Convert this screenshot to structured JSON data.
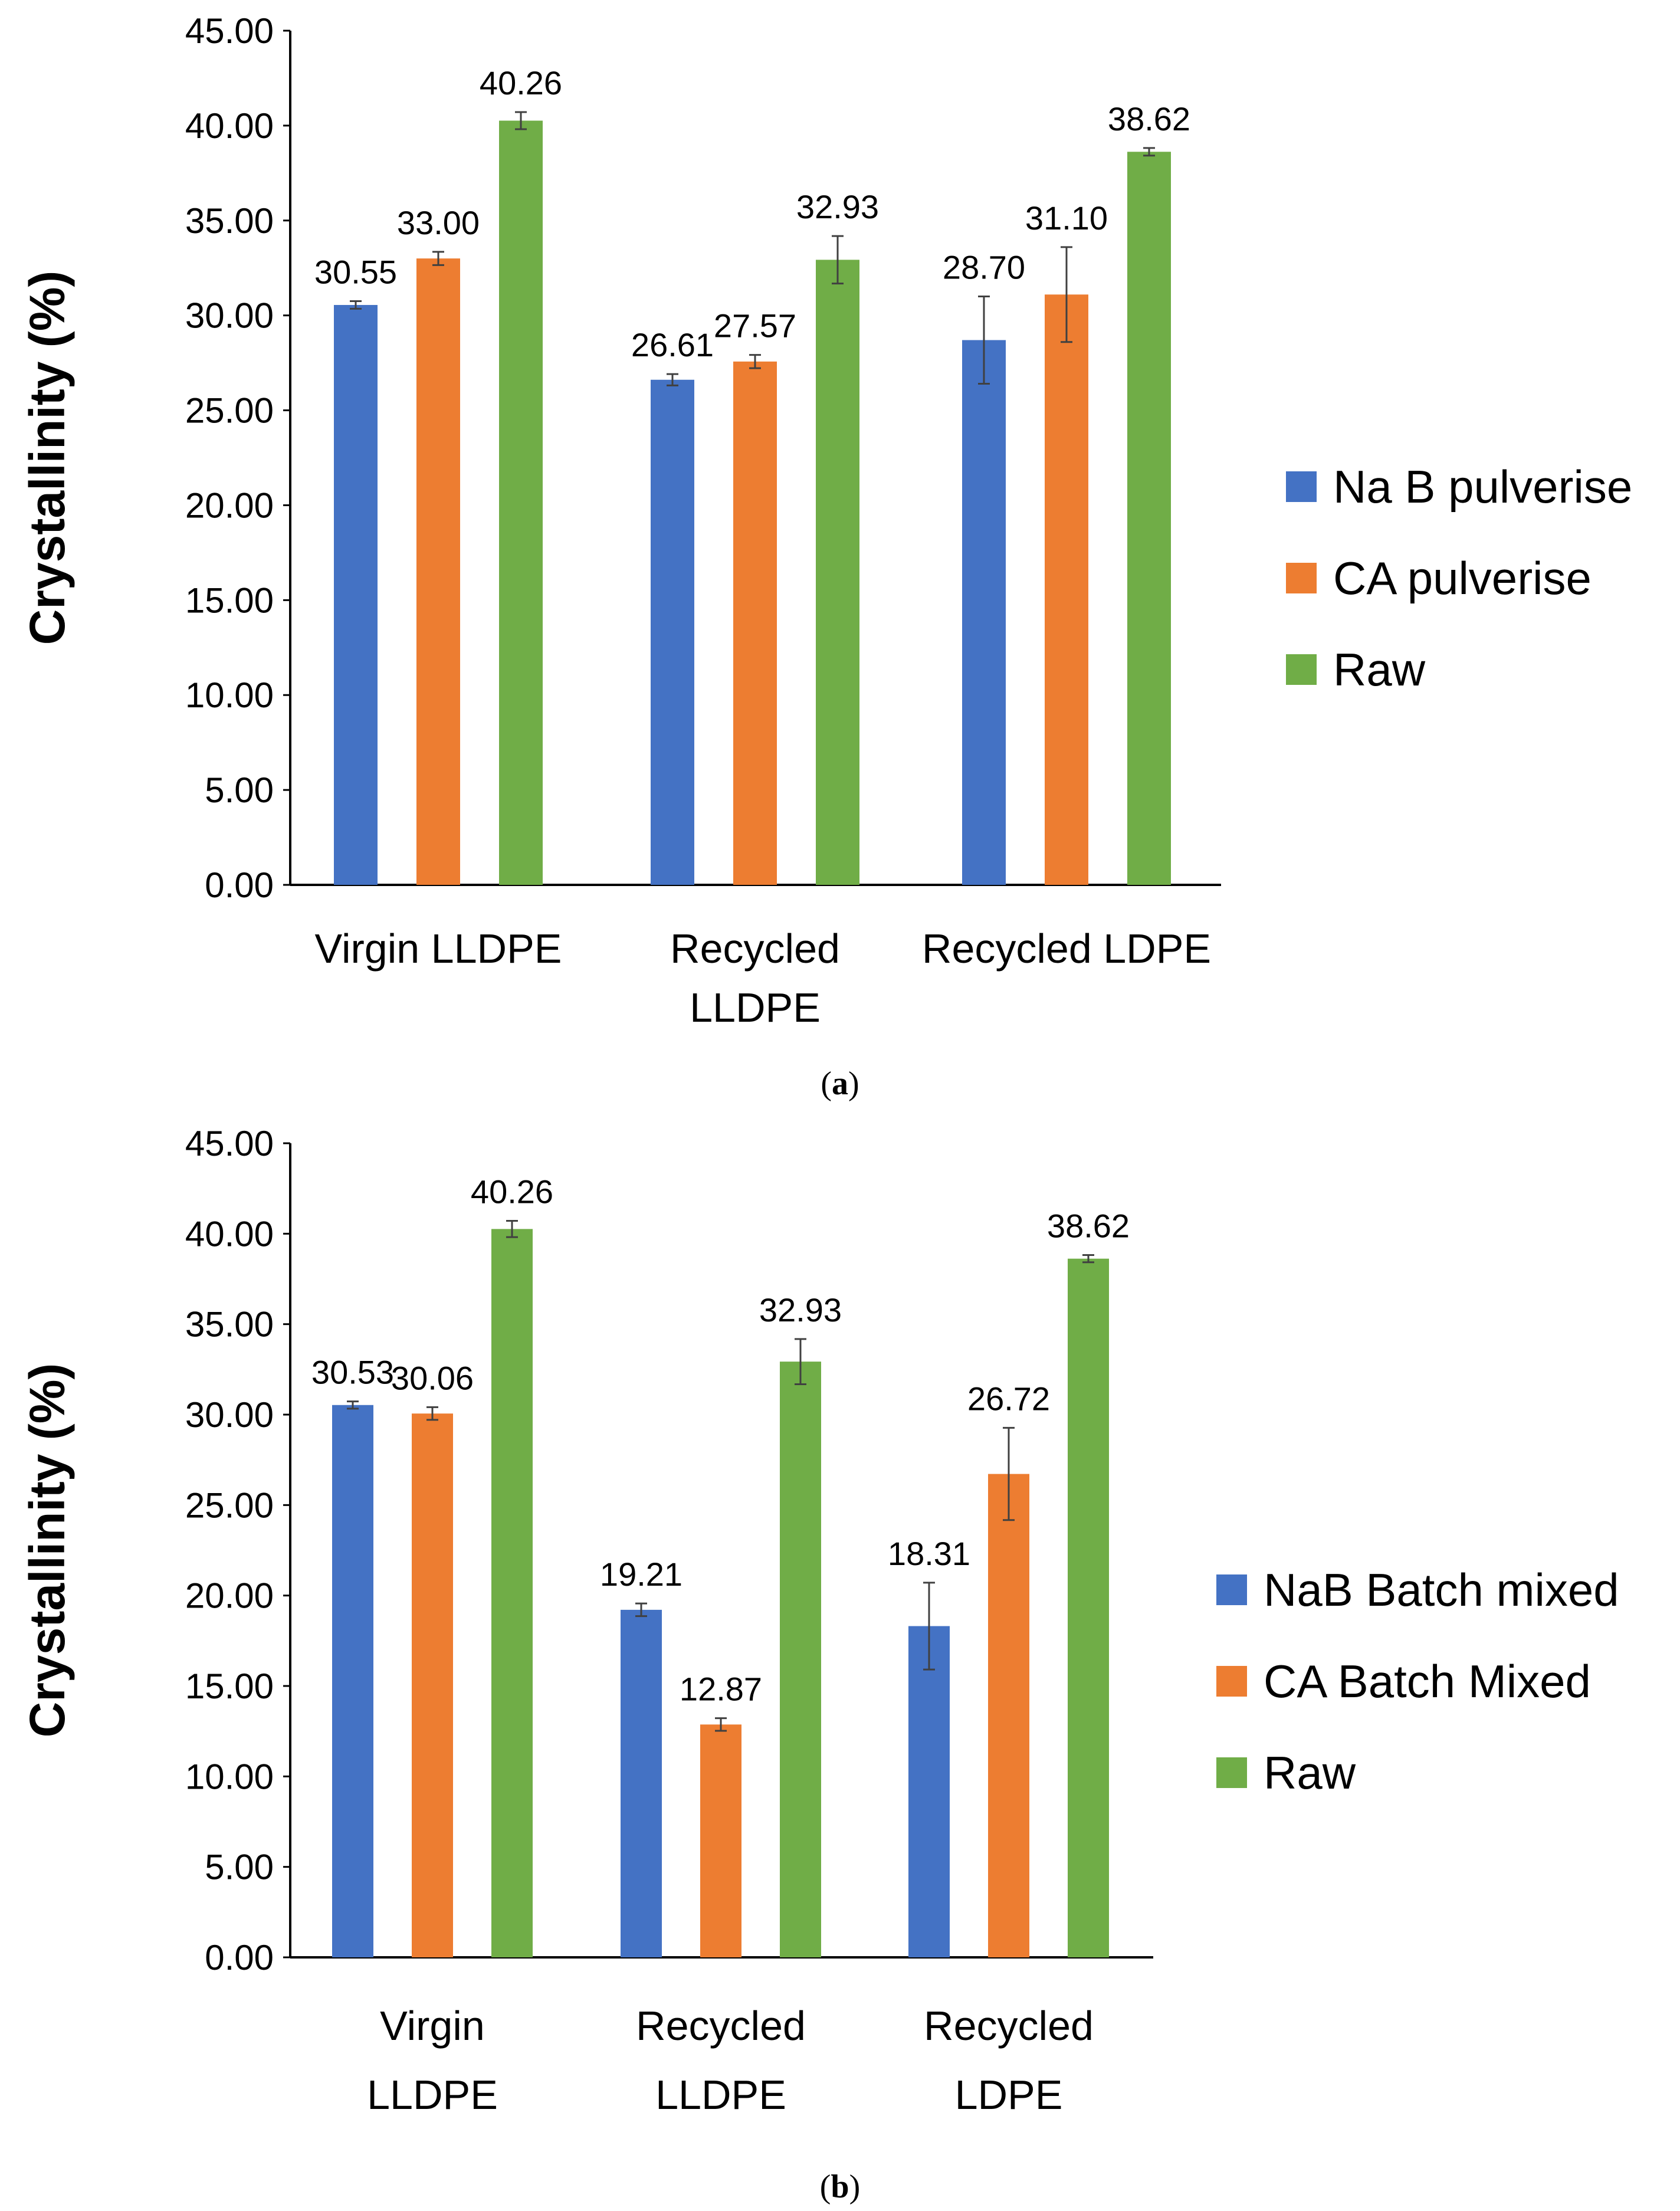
{
  "colors": {
    "blue": "#4472C4",
    "orange": "#ED7D31",
    "green": "#70AD47",
    "axis": "#000000",
    "errorbar": "#404040"
  },
  "chart_data": [
    {
      "type": "bar",
      "panel": "a",
      "caption": "a",
      "ylabel": "Crystallinity (%)",
      "ylim": [
        0,
        45
      ],
      "yticks": [
        "0.00",
        "5.00",
        "10.00",
        "15.00",
        "20.00",
        "25.00",
        "30.00",
        "35.00",
        "40.00",
        "45.00"
      ],
      "categories": [
        [
          "Virgin LLDPE"
        ],
        [
          "Recycled",
          "LLDPE"
        ],
        [
          "Recycled LDPE"
        ]
      ],
      "legend_position": "right",
      "series": [
        {
          "name": "Na B pulverise",
          "color": "#4472C4",
          "values": [
            30.55,
            26.61,
            28.7
          ],
          "errors": [
            0.2,
            0.3,
            2.3
          ],
          "labels": [
            "30.55",
            "26.61",
            "28.70"
          ]
        },
        {
          "name": "CA pulverise",
          "color": "#ED7D31",
          "values": [
            33.0,
            27.57,
            31.1
          ],
          "errors": [
            0.35,
            0.35,
            2.5
          ],
          "labels": [
            "33.00",
            "27.57",
            "31.10"
          ]
        },
        {
          "name": "Raw",
          "color": "#70AD47",
          "values": [
            40.26,
            32.93,
            38.62
          ],
          "errors": [
            0.45,
            1.25,
            0.2
          ],
          "labels": [
            "40.26",
            "32.93",
            "38.62"
          ]
        }
      ]
    },
    {
      "type": "bar",
      "panel": "b",
      "caption": "b",
      "ylabel": "Crystallinity (%)",
      "ylim": [
        0,
        45
      ],
      "yticks": [
        "0.00",
        "5.00",
        "10.00",
        "15.00",
        "20.00",
        "25.00",
        "30.00",
        "35.00",
        "40.00",
        "45.00"
      ],
      "categories": [
        [
          "Virgin",
          "LLDPE"
        ],
        [
          "Recycled",
          "LLDPE"
        ],
        [
          "Recycled",
          "LDPE"
        ]
      ],
      "legend_position": "right",
      "series": [
        {
          "name": "NaB Batch mixed",
          "color": "#4472C4",
          "values": [
            30.53,
            19.21,
            18.31
          ],
          "errors": [
            0.2,
            0.35,
            2.4
          ],
          "labels": [
            "30.53",
            "19.21",
            "18.31"
          ]
        },
        {
          "name": "CA Batch Mixed",
          "color": "#ED7D31",
          "values": [
            30.06,
            12.87,
            26.72
          ],
          "errors": [
            0.35,
            0.35,
            2.55
          ],
          "labels": [
            "30.06",
            "12.87",
            "26.72"
          ]
        },
        {
          "name": "Raw",
          "color": "#70AD47",
          "values": [
            40.26,
            32.93,
            38.62
          ],
          "errors": [
            0.45,
            1.25,
            0.2
          ],
          "labels": [
            "40.26",
            "32.93",
            "38.62"
          ]
        }
      ]
    }
  ]
}
